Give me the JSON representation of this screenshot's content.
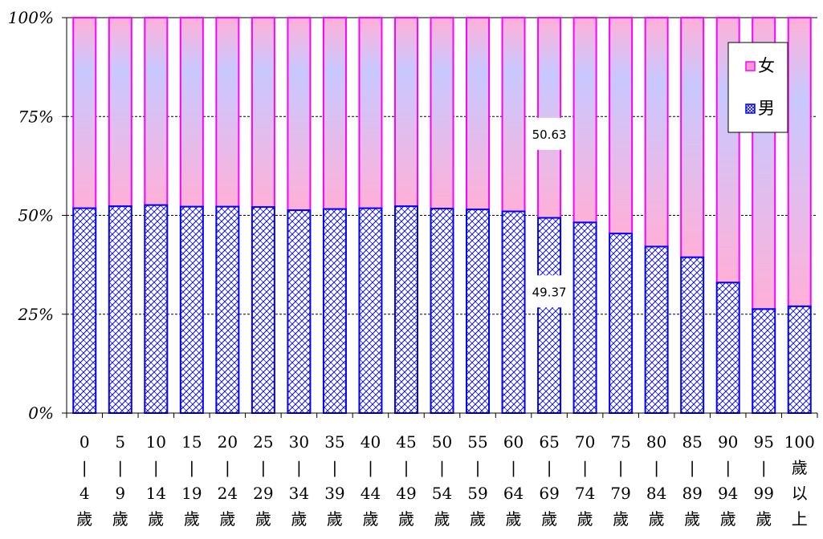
{
  "chart_data": {
    "type": "bar",
    "stacked": "percent",
    "y_tick_labels": [
      "0%",
      "25%",
      "50%",
      "75%",
      "100%"
    ],
    "ylim": [
      0,
      100
    ],
    "grid": "horizontal dashed at 25% steps",
    "legend_position": "top-right",
    "categories": [
      [
        "0",
        "|",
        "4",
        "歲"
      ],
      [
        "5",
        "|",
        "9",
        "歲"
      ],
      [
        "10",
        "|",
        "14",
        "歲"
      ],
      [
        "15",
        "|",
        "19",
        "歲"
      ],
      [
        "20",
        "|",
        "24",
        "歲"
      ],
      [
        "25",
        "|",
        "29",
        "歲"
      ],
      [
        "30",
        "|",
        "34",
        "歲"
      ],
      [
        "35",
        "|",
        "39",
        "歲"
      ],
      [
        "40",
        "|",
        "44",
        "歲"
      ],
      [
        "45",
        "|",
        "49",
        "歲"
      ],
      [
        "50",
        "|",
        "54",
        "歲"
      ],
      [
        "55",
        "|",
        "59",
        "歲"
      ],
      [
        "60",
        "|",
        "64",
        "歲"
      ],
      [
        "65",
        "|",
        "69",
        "歲"
      ],
      [
        "70",
        "|",
        "74",
        "歲"
      ],
      [
        "75",
        "|",
        "79",
        "歲"
      ],
      [
        "80",
        "|",
        "84",
        "歲"
      ],
      [
        "85",
        "|",
        "89",
        "歲"
      ],
      [
        "90",
        "|",
        "94",
        "歲"
      ],
      [
        "95",
        "|",
        "99",
        "歲"
      ],
      [
        "100",
        "歲",
        "以",
        "上"
      ]
    ],
    "series": [
      {
        "name": "男",
        "color": "#0000ff",
        "pattern": "blue crosshatch",
        "values": [
          51.8,
          52.3,
          52.6,
          52.2,
          52.2,
          52.1,
          51.3,
          51.6,
          51.8,
          52.3,
          51.7,
          51.5,
          51.0,
          49.37,
          48.2,
          45.4,
          42.1,
          39.4,
          33.0,
          26.3,
          27.0
        ]
      },
      {
        "name": "女",
        "color": "#ff00ff",
        "gradient": [
          "#c8c8ff",
          "#ffb0d8"
        ],
        "values": [
          48.2,
          47.7,
          47.4,
          47.8,
          47.8,
          47.9,
          48.7,
          48.4,
          48.2,
          47.7,
          48.3,
          48.5,
          49.0,
          50.63,
          51.8,
          54.6,
          57.9,
          60.6,
          67.0,
          73.7,
          73.0
        ]
      }
    ],
    "data_labels": [
      {
        "category_index": 13,
        "series": "女",
        "text": "50.63"
      },
      {
        "category_index": 13,
        "series": "男",
        "text": "49.37"
      }
    ]
  }
}
